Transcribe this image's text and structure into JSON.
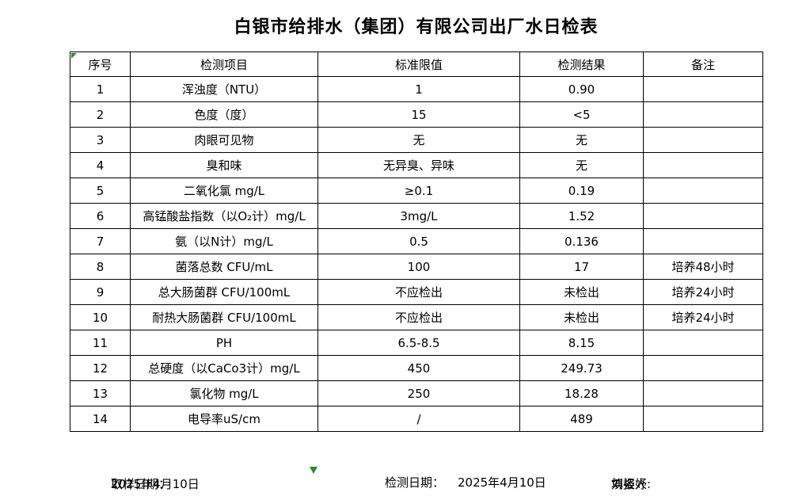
{
  "title": "白银市给排水（集团）有限公司出厂水日检表",
  "table": {
    "headers": [
      "序号",
      "检测项目",
      "标准限值",
      "检测结果",
      "备注"
    ],
    "rows": [
      [
        "1",
        "浑浊度（NTU）",
        "1",
        "0.90",
        ""
      ],
      [
        "2",
        "色度（度）",
        "15",
        "<5",
        ""
      ],
      [
        "3",
        "肉眼可见物",
        "无",
        "无",
        ""
      ],
      [
        "4",
        "臭和味",
        "无异臭、异味",
        "无",
        ""
      ],
      [
        "5",
        "二氧化氯 mg/L",
        "≥0.1",
        "0.19",
        ""
      ],
      [
        "6",
        "高锰酸盐指数（以O₂计）mg/L",
        "3mg/L",
        "1.52",
        ""
      ],
      [
        "7",
        "氨（以N计）mg/L",
        "0.5",
        "0.136",
        ""
      ],
      [
        "8",
        "菌落总数 CFU/mL",
        "100",
        "17",
        "培养48小时"
      ],
      [
        "9",
        "总大肠菌群 CFU/100mL",
        "不应检出",
        "未检出",
        "培养24小时"
      ],
      [
        "10",
        "耐热大肠菌群 CFU/100mL",
        "不应检出",
        "未检出",
        "培养24小时"
      ],
      [
        "11",
        "PH",
        "6.5-8.5",
        "8.15",
        ""
      ],
      [
        "12",
        "总硬度（以CaCo3计）mg/L",
        "450",
        "249.73",
        ""
      ],
      [
        "13",
        "氯化物 mg/L",
        "250",
        "18.28",
        ""
      ],
      [
        "14",
        "电导率uS/cm",
        "/",
        "489",
        ""
      ]
    ]
  },
  "footer": {
    "sampling_date_label": "取样日期：",
    "sampling_date": "2025年4月10日",
    "test_date_label": "检测日期：",
    "test_date": "2025年4月10日",
    "reporter_label": "填报人:",
    "reporter_name": "刘姿妤"
  },
  "icons": {
    "header_corner_marker": "green-triangle",
    "bottom_edge_marker": "green-triangle"
  },
  "colors": {
    "border": "#000000",
    "text": "#000000",
    "background": "#ffffff",
    "marker_green": "#2e8b2e"
  }
}
